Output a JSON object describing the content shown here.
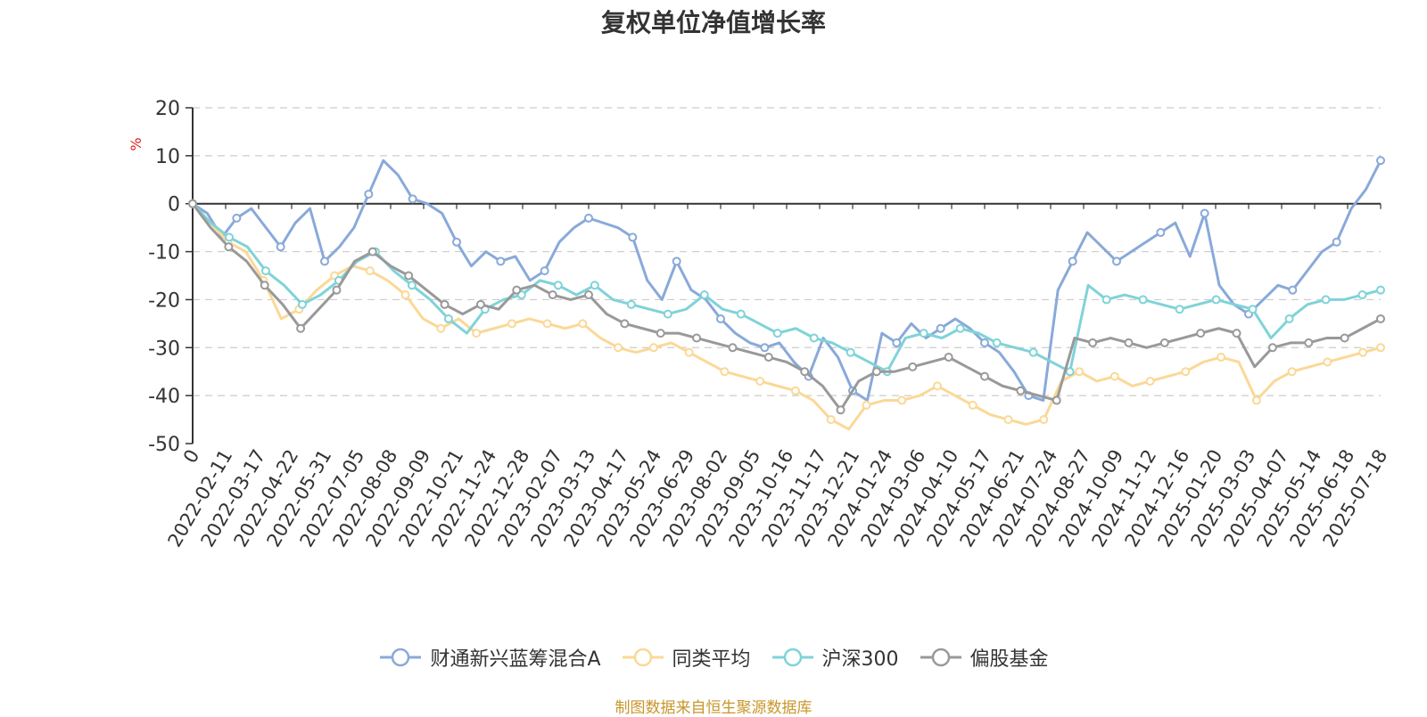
{
  "chart_data": {
    "type": "line",
    "title": "复权单位净值增长率",
    "ylabel": "%",
    "ylim": [
      -50,
      20
    ],
    "yticks": [
      20,
      10,
      0,
      -10,
      -20,
      -30,
      -40,
      -50
    ],
    "xticks": [
      "0",
      "2022-02-11",
      "2022-03-17",
      "2022-04-22",
      "2022-05-31",
      "2022-07-05",
      "2022-08-08",
      "2022-09-09",
      "2022-10-21",
      "2022-11-24",
      "2022-12-28",
      "2023-02-07",
      "2023-03-13",
      "2023-04-17",
      "2023-05-24",
      "2023-06-29",
      "2023-08-02",
      "2023-09-05",
      "2023-10-16",
      "2023-11-17",
      "2023-12-21",
      "2024-01-24",
      "2024-03-06",
      "2024-04-10",
      "2024-05-17",
      "2024-06-21",
      "2024-07-24",
      "2024-08-27",
      "2024-10-09",
      "2024-11-12",
      "2024-12-16",
      "2025-01-20",
      "2025-03-03",
      "2025-04-07",
      "2025-05-14",
      "2025-06-18",
      "2025-07-18"
    ],
    "grid": true,
    "legend_position": "bottom",
    "series": [
      {
        "name": "财通新兴蓝筹混合A",
        "color": "#89a9d9",
        "values": [
          0,
          -2,
          -7,
          -3,
          -1,
          -5,
          -9,
          -4,
          -1,
          -12,
          -9,
          -5,
          2,
          9,
          6,
          1,
          0,
          -2,
          -8,
          -13,
          -10,
          -12,
          -11,
          -16,
          -14,
          -8,
          -5,
          -3,
          -4,
          -5,
          -7,
          -16,
          -20,
          -12,
          -18,
          -20,
          -24,
          -27,
          -29,
          -30,
          -29,
          -33,
          -36,
          -28,
          -32,
          -39,
          -41,
          -27,
          -29,
          -25,
          -28,
          -26,
          -24,
          -26,
          -29,
          -31,
          -35,
          -40,
          -41,
          -18,
          -12,
          -6,
          -9,
          -12,
          -10,
          -8,
          -6,
          -4,
          -11,
          -2,
          -17,
          -21,
          -23,
          -20,
          -17,
          -18,
          -14,
          -10,
          -8,
          -1,
          3,
          9
        ]
      },
      {
        "name": "同类平均",
        "color": "#fbd896",
        "values": [
          0,
          -4,
          -8,
          -10,
          -16,
          -24,
          -22,
          -18,
          -15,
          -13,
          -14,
          -16,
          -19,
          -24,
          -26,
          -24,
          -27,
          -26,
          -25,
          -24,
          -25,
          -26,
          -25,
          -28,
          -30,
          -31,
          -30,
          -29,
          -31,
          -33,
          -35,
          -36,
          -37,
          -38,
          -39,
          -41,
          -45,
          -47,
          -42,
          -41,
          -41,
          -40,
          -38,
          -40,
          -42,
          -44,
          -45,
          -46,
          -45,
          -37,
          -35,
          -37,
          -36,
          -38,
          -37,
          -36,
          -35,
          -33,
          -32,
          -33,
          -41,
          -37,
          -35,
          -34,
          -33,
          -32,
          -31,
          -30
        ]
      },
      {
        "name": "沪深300",
        "color": "#7fd3d8",
        "values": [
          0,
          -4,
          -7,
          -9,
          -14,
          -17,
          -21,
          -19,
          -16,
          -12,
          -10,
          -14,
          -17,
          -20,
          -24,
          -27,
          -22,
          -20,
          -19,
          -16,
          -17,
          -19,
          -17,
          -20,
          -21,
          -22,
          -23,
          -22,
          -19,
          -22,
          -23,
          -25,
          -27,
          -26,
          -28,
          -29,
          -31,
          -33,
          -35,
          -28,
          -27,
          -28,
          -26,
          -27,
          -29,
          -30,
          -31,
          -33,
          -35,
          -17,
          -20,
          -19,
          -20,
          -21,
          -22,
          -21,
          -20,
          -21,
          -22,
          -28,
          -24,
          -21,
          -20,
          -20,
          -19,
          -18
        ]
      },
      {
        "name": "偏股基金",
        "color": "#999999",
        "values": [
          0,
          -5,
          -9,
          -12,
          -17,
          -21,
          -26,
          -22,
          -18,
          -12,
          -10,
          -13,
          -15,
          -18,
          -21,
          -23,
          -21,
          -22,
          -18,
          -17,
          -19,
          -20,
          -19,
          -23,
          -25,
          -26,
          -27,
          -27,
          -28,
          -29,
          -30,
          -31,
          -32,
          -33,
          -35,
          -38,
          -43,
          -37,
          -35,
          -35,
          -34,
          -33,
          -32,
          -34,
          -36,
          -38,
          -39,
          -40,
          -41,
          -28,
          -29,
          -28,
          -29,
          -30,
          -29,
          -28,
          -27,
          -26,
          -27,
          -34,
          -30,
          -29,
          -29,
          -28,
          -28,
          -26,
          -24
        ]
      }
    ]
  },
  "source_text": "制图数据来自恒生聚源数据库"
}
